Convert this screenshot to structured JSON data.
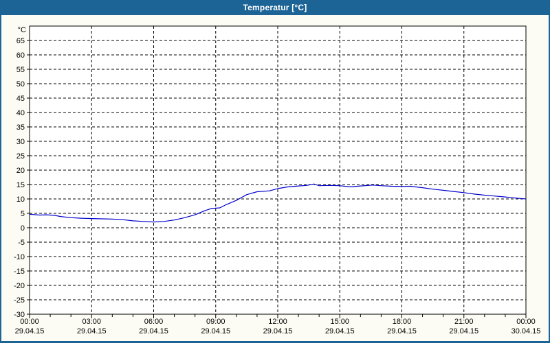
{
  "window": {
    "title": "Temperatur [°C]",
    "colors": {
      "title_bar": "#1c6496",
      "border": "#1c6496",
      "background": "#fcfcf4",
      "plot_background": "#ffffff",
      "grid": "#000000",
      "axis": "#000000",
      "label": "#000000",
      "series_line": "#0000cc"
    }
  },
  "chart_data": {
    "type": "line",
    "title": "Temperatur [°C]",
    "xlabel": "",
    "ylabel": "°C",
    "grid": "dashed",
    "legend": "none",
    "y_axis": {
      "unit_label": "°C",
      "min": -30,
      "max": 70,
      "tick_min": -30,
      "tick_max": 65,
      "tick_step": 5
    },
    "x_axis": {
      "range_hours": [
        0,
        24
      ],
      "minor_tick_hours": 1,
      "major_tick_hours": 3,
      "labels": [
        {
          "hour": 0,
          "time": "00:00",
          "date": "29.04.15"
        },
        {
          "hour": 3,
          "time": "03:00",
          "date": "29.04.15"
        },
        {
          "hour": 6,
          "time": "06:00",
          "date": "29.04.15"
        },
        {
          "hour": 9,
          "time": "09:00",
          "date": "29.04.15"
        },
        {
          "hour": 12,
          "time": "12:00",
          "date": "29.04.15"
        },
        {
          "hour": 15,
          "time": "15:00",
          "date": "29.04.15"
        },
        {
          "hour": 18,
          "time": "18:00",
          "date": "29.04.15"
        },
        {
          "hour": 21,
          "time": "21:00",
          "date": "29.04.15"
        },
        {
          "hour": 24,
          "time": "00:00",
          "date": "30.04.15"
        }
      ]
    },
    "series": [
      {
        "name": "Temperatur",
        "color": "#0000cc",
        "points_hour_celsius": [
          [
            0,
            4.7
          ],
          [
            0.5,
            4.4
          ],
          [
            0.8,
            4.5
          ],
          [
            1.2,
            4.3
          ],
          [
            1.5,
            3.9
          ],
          [
            2,
            3.5
          ],
          [
            2.5,
            3.3
          ],
          [
            3,
            3.2
          ],
          [
            3.5,
            3.1
          ],
          [
            4,
            3.0
          ],
          [
            4.5,
            2.8
          ],
          [
            5,
            2.4
          ],
          [
            5.5,
            2.2
          ],
          [
            6,
            2.0
          ],
          [
            6.5,
            2.2
          ],
          [
            7,
            2.7
          ],
          [
            7.5,
            3.5
          ],
          [
            8,
            4.5
          ],
          [
            8.5,
            6.0
          ],
          [
            8.8,
            6.7
          ],
          [
            9.2,
            6.9
          ],
          [
            9.5,
            8.0
          ],
          [
            10,
            9.5
          ],
          [
            10.5,
            11.5
          ],
          [
            11,
            12.5
          ],
          [
            11.6,
            12.8
          ],
          [
            12,
            13.6
          ],
          [
            12.5,
            14.2
          ],
          [
            13,
            14.5
          ],
          [
            13.4,
            14.7
          ],
          [
            13.75,
            15.2
          ],
          [
            14,
            14.6
          ],
          [
            14.5,
            14.7
          ],
          [
            15,
            14.6
          ],
          [
            15.5,
            14.2
          ],
          [
            16,
            14.5
          ],
          [
            16.6,
            14.8
          ],
          [
            17,
            14.6
          ],
          [
            17.5,
            14.4
          ],
          [
            18,
            14.3
          ],
          [
            18.4,
            14.4
          ],
          [
            19,
            13.9
          ],
          [
            19.5,
            13.4
          ],
          [
            20,
            13.0
          ],
          [
            20.5,
            12.6
          ],
          [
            21,
            12.2
          ],
          [
            21.5,
            11.7
          ],
          [
            22,
            11.3
          ],
          [
            22.5,
            11.0
          ],
          [
            23,
            10.7
          ],
          [
            23.5,
            10.3
          ],
          [
            24,
            10.0
          ]
        ]
      }
    ]
  }
}
